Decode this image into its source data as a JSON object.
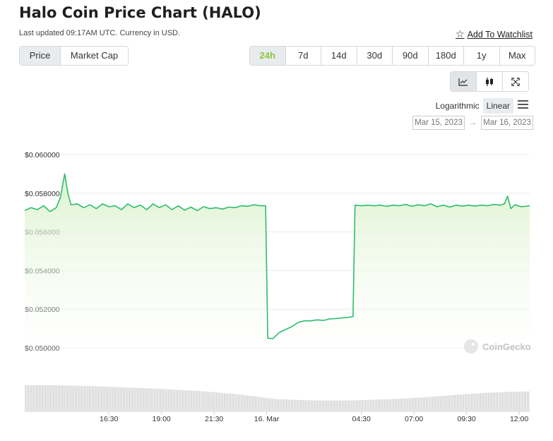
{
  "header": {
    "title": "Halo Coin Price Chart (HALO)",
    "updated": "Last updated 09:17AM UTC. Currency in USD.",
    "watchlist_label": "Add To Watchlist"
  },
  "controls": {
    "metric_tabs": [
      "Price",
      "Market Cap"
    ],
    "metric_selected": "Price",
    "ranges": [
      "24h",
      "7d",
      "14d",
      "30d",
      "90d",
      "180d",
      "1y",
      "Max"
    ],
    "range_selected": "24h",
    "chart_types": [
      "line-chart-icon",
      "candlestick-icon",
      "expand-icon"
    ],
    "chart_type_selected": "line-chart-icon",
    "scale_options": [
      "Logarithmic",
      "Linear"
    ],
    "scale_selected": "Linear",
    "date_from": "Mar 15, 2023",
    "date_to": "Mar 16, 2023",
    "date_arrow": "→"
  },
  "watermark": "CoinGecko",
  "colors": {
    "line": "#2dbd6e",
    "area_top": "#d7f0c6",
    "active_range": "#8dc63f",
    "volume": "#c8c8c8"
  },
  "chart_data": {
    "type": "area",
    "y_ticks": [
      "$0.060000",
      "$0.058000",
      "$0.056000",
      "$0.054000",
      "$0.052000",
      "$0.050000"
    ],
    "ylim": [
      0.0496,
      0.0604
    ],
    "x_ticks": [
      "16:30",
      "19:00",
      "21:30",
      "16. Mar",
      "04:30",
      "07:00",
      "09:30",
      "12:00"
    ],
    "x_tick_hours": [
      16.5,
      19,
      21.5,
      24,
      28.5,
      31,
      33.5,
      36
    ],
    "xlim_hours": [
      12.5,
      36.5
    ],
    "x_unit": "hours since Mar 15 00:00 UTC",
    "series": [
      {
        "values": [
          [
            12.5,
            0.0571
          ],
          [
            12.8,
            0.05725
          ],
          [
            13.1,
            0.05715
          ],
          [
            13.4,
            0.05735
          ],
          [
            13.7,
            0.05705
          ],
          [
            14.0,
            0.05725
          ],
          [
            14.2,
            0.0578
          ],
          [
            14.4,
            0.059
          ],
          [
            14.55,
            0.058
          ],
          [
            14.7,
            0.0574
          ],
          [
            15.0,
            0.05745
          ],
          [
            15.3,
            0.05725
          ],
          [
            15.6,
            0.0574
          ],
          [
            15.9,
            0.0572
          ],
          [
            16.2,
            0.05745
          ],
          [
            16.5,
            0.0573
          ],
          [
            16.8,
            0.05735
          ],
          [
            17.1,
            0.05715
          ],
          [
            17.4,
            0.05745
          ],
          [
            17.7,
            0.05725
          ],
          [
            18.0,
            0.05738
          ],
          [
            18.3,
            0.05715
          ],
          [
            18.6,
            0.05745
          ],
          [
            18.9,
            0.05725
          ],
          [
            19.2,
            0.0574
          ],
          [
            19.5,
            0.05715
          ],
          [
            19.8,
            0.05735
          ],
          [
            20.1,
            0.05712
          ],
          [
            20.4,
            0.05728
          ],
          [
            20.7,
            0.0571
          ],
          [
            21.0,
            0.0573
          ],
          [
            21.3,
            0.0572
          ],
          [
            21.6,
            0.05725
          ],
          [
            21.9,
            0.05718
          ],
          [
            22.2,
            0.05728
          ],
          [
            22.5,
            0.05725
          ],
          [
            22.8,
            0.05735
          ],
          [
            23.1,
            0.05732
          ],
          [
            23.4,
            0.0574
          ],
          [
            23.7,
            0.05735
          ],
          [
            23.95,
            0.05735
          ],
          [
            24.05,
            0.0505
          ],
          [
            24.3,
            0.05048
          ],
          [
            24.6,
            0.0508
          ],
          [
            24.9,
            0.05095
          ],
          [
            25.2,
            0.0511
          ],
          [
            25.5,
            0.05132
          ],
          [
            25.8,
            0.0514
          ],
          [
            26.1,
            0.0514
          ],
          [
            26.4,
            0.05145
          ],
          [
            26.7,
            0.05142
          ],
          [
            27.0,
            0.0515
          ],
          [
            27.3,
            0.05152
          ],
          [
            27.6,
            0.05155
          ],
          [
            27.9,
            0.05158
          ],
          [
            28.1,
            0.05162
          ],
          [
            28.2,
            0.05738
          ],
          [
            28.5,
            0.05735
          ],
          [
            28.8,
            0.05738
          ],
          [
            29.1,
            0.05735
          ],
          [
            29.4,
            0.05738
          ],
          [
            29.7,
            0.05732
          ],
          [
            30.0,
            0.05738
          ],
          [
            30.3,
            0.05735
          ],
          [
            30.6,
            0.05742
          ],
          [
            30.9,
            0.05732
          ],
          [
            31.2,
            0.0574
          ],
          [
            31.5,
            0.05735
          ],
          [
            31.8,
            0.05745
          ],
          [
            32.1,
            0.0573
          ],
          [
            32.4,
            0.05738
          ],
          [
            32.7,
            0.05728
          ],
          [
            33.0,
            0.05738
          ],
          [
            33.3,
            0.05733
          ],
          [
            33.6,
            0.05738
          ],
          [
            33.9,
            0.05733
          ],
          [
            34.2,
            0.05738
          ],
          [
            34.5,
            0.05735
          ],
          [
            34.8,
            0.05742
          ],
          [
            35.1,
            0.05738
          ],
          [
            35.3,
            0.05745
          ],
          [
            35.45,
            0.05785
          ],
          [
            35.6,
            0.0572
          ],
          [
            35.8,
            0.0574
          ],
          [
            36.1,
            0.0573
          ],
          [
            36.5,
            0.05735
          ]
        ]
      }
    ],
    "volume": [
      [
        12.5,
        0.95
      ],
      [
        13.5,
        0.95
      ],
      [
        14.5,
        0.94
      ],
      [
        15.5,
        0.92
      ],
      [
        16.5,
        0.89
      ],
      [
        17.5,
        0.86
      ],
      [
        18.5,
        0.83
      ],
      [
        19.5,
        0.79
      ],
      [
        20.5,
        0.75
      ],
      [
        21.5,
        0.69
      ],
      [
        22.5,
        0.62
      ],
      [
        23.5,
        0.53
      ],
      [
        24.0,
        0.47
      ],
      [
        24.5,
        0.43
      ],
      [
        25.5,
        0.4
      ],
      [
        26.5,
        0.38
      ],
      [
        27.5,
        0.38
      ],
      [
        28.5,
        0.39
      ],
      [
        29.5,
        0.42
      ],
      [
        30.5,
        0.45
      ],
      [
        31.5,
        0.5
      ],
      [
        32.5,
        0.56
      ],
      [
        33.5,
        0.62
      ],
      [
        34.5,
        0.67
      ],
      [
        35.5,
        0.7
      ],
      [
        36.5,
        0.72
      ]
    ],
    "grid": true
  }
}
